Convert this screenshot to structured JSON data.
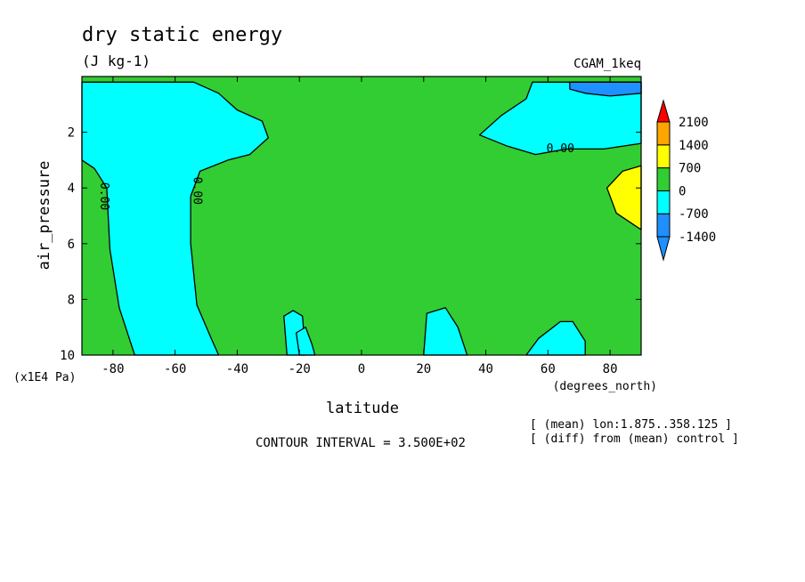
{
  "title": "dry static energy",
  "units": "(J kg-1)",
  "dataset": "CGAM_1keq",
  "contour_interval_text": "CONTOUR INTERVAL = 3.500E+02",
  "notes": [
    "[ (mean) lon:1.875..358.125 ]",
    "[ (diff) from (mean) control ]"
  ],
  "colors": {
    "lt_neg1400": "#1e90ff",
    "neg1400_neg700": "#1e90ff",
    "neg700_0": "#00ffff",
    "0_700": "#32cd32",
    "700_1400": "#ffff00",
    "1400_2100": "#ffa500",
    "gt_2100": "#ff0000"
  },
  "chart_data": {
    "type": "heatmap",
    "title": "dry static energy",
    "subtitle": "(J kg-1)",
    "xlabel": "latitude",
    "x_units": "(degrees_north)",
    "ylabel": "air_pressure",
    "y_units": "(x1E4 Pa)",
    "xlim": [
      -90,
      90
    ],
    "ylim": [
      10,
      0
    ],
    "xticks": [
      -80,
      -60,
      -40,
      -20,
      0,
      20,
      40,
      60,
      80
    ],
    "yticks": [
      2,
      4,
      6,
      8,
      10
    ],
    "colorbar_levels": [
      -1400,
      -700,
      0,
      700,
      1400,
      2100
    ],
    "contour_labels": [
      {
        "text": "0.00",
        "lat": -83,
        "p": 4.3
      },
      {
        "text": "0.00",
        "lat": -53,
        "p": 4.1
      },
      {
        "text": "0.00",
        "lat": 64,
        "p": 2.6
      }
    ],
    "regions": [
      {
        "level": "neg700_0",
        "pts": [
          [
            -90,
            0.2
          ],
          [
            -54,
            0.2
          ],
          [
            -46,
            0.6
          ],
          [
            -40,
            1.2
          ],
          [
            -32,
            1.6
          ],
          [
            -30,
            2.2
          ],
          [
            -36,
            2.8
          ],
          [
            -43,
            3.0
          ],
          [
            -52,
            3.4
          ],
          [
            -55,
            4.3
          ],
          [
            -55,
            6.0
          ],
          [
            -53,
            8.2
          ],
          [
            -48,
            9.5
          ],
          [
            -46,
            10
          ],
          [
            -73,
            10
          ],
          [
            -78,
            8.3
          ],
          [
            -81,
            6.2
          ],
          [
            -82,
            4.0
          ],
          [
            -86,
            3.3
          ],
          [
            -90,
            3.0
          ]
        ]
      },
      {
        "level": "neg700_0",
        "pts": [
          [
            55,
            0.2
          ],
          [
            90,
            0.2
          ],
          [
            90,
            2.4
          ],
          [
            78,
            2.6
          ],
          [
            66,
            2.6
          ],
          [
            56,
            2.8
          ],
          [
            47,
            2.5
          ],
          [
            38,
            2.1
          ],
          [
            45,
            1.4
          ],
          [
            53,
            0.8
          ]
        ]
      },
      {
        "level": "neg1400_neg700",
        "pts": [
          [
            67,
            0.2
          ],
          [
            90,
            0.2
          ],
          [
            90,
            0.6
          ],
          [
            80,
            0.7
          ],
          [
            72,
            0.6
          ],
          [
            67,
            0.45
          ]
        ]
      },
      {
        "level": "700_1400",
        "pts": [
          [
            90,
            3.2
          ],
          [
            84,
            3.4
          ],
          [
            79,
            4.0
          ],
          [
            82,
            4.9
          ],
          [
            90,
            5.5
          ]
        ]
      },
      {
        "level": "neg700_0",
        "pts": [
          [
            -24,
            10
          ],
          [
            -25,
            8.6
          ],
          [
            -22,
            8.4
          ],
          [
            -19,
            8.6
          ],
          [
            -18,
            10
          ]
        ]
      },
      {
        "level": "neg700_0",
        "pts": [
          [
            -20,
            10
          ],
          [
            -21,
            9.2
          ],
          [
            -18,
            9.0
          ],
          [
            -16,
            9.6
          ],
          [
            -15,
            10
          ]
        ]
      },
      {
        "level": "neg700_0",
        "pts": [
          [
            20,
            10
          ],
          [
            21,
            8.5
          ],
          [
            27,
            8.3
          ],
          [
            31,
            9.0
          ],
          [
            34,
            10
          ]
        ]
      },
      {
        "level": "neg700_0",
        "pts": [
          [
            53,
            10
          ],
          [
            57,
            9.4
          ],
          [
            64,
            8.8
          ],
          [
            68,
            8.8
          ],
          [
            72,
            9.5
          ],
          [
            72,
            10
          ]
        ]
      }
    ]
  }
}
